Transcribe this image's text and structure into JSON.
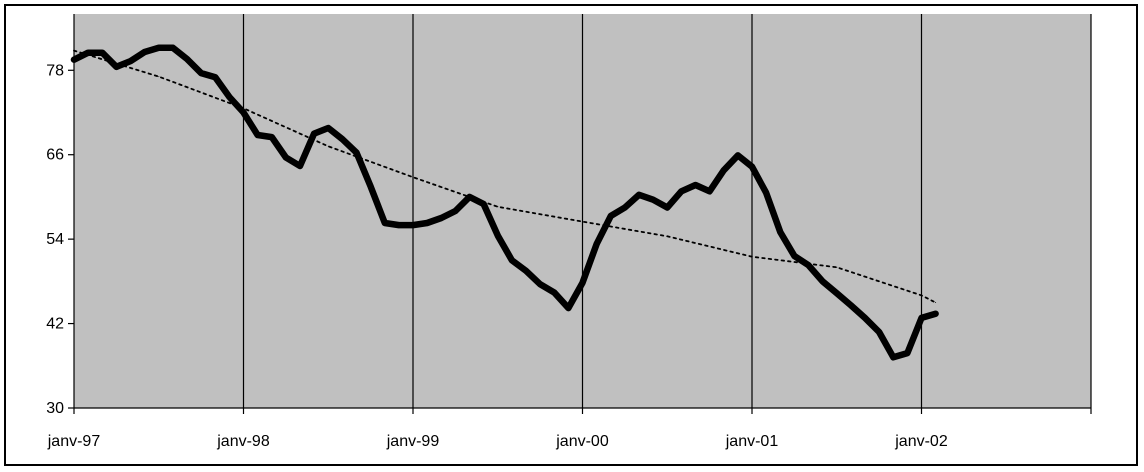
{
  "chart_data": {
    "type": "line",
    "title": "",
    "xlabel": "",
    "ylabel": "",
    "x_axis": {
      "range": [
        "1997-01",
        "2003-01"
      ],
      "tick_labels": [
        "janv-97",
        "janv-98",
        "janv-99",
        "janv-00",
        "janv-01",
        "janv-02"
      ],
      "tick_values": [
        "1997-01",
        "1998-01",
        "1999-01",
        "2000-01",
        "2001-01",
        "2002-01",
        "2003-01"
      ]
    },
    "y_axis": {
      "range": [
        30,
        86
      ],
      "tick_labels": [
        "30",
        "42",
        "54",
        "66",
        "78"
      ],
      "tick_values": [
        30,
        42,
        54,
        66,
        78
      ]
    },
    "grid": {
      "vertical": true,
      "horizontal": false
    },
    "legend": "none",
    "colors": {
      "plot_area": "#c0c0c0",
      "series": "#000000",
      "trend": "#000000",
      "frame": "#000000"
    },
    "series": [
      {
        "style": "solid-thick",
        "x": [
          "1997-01",
          "1997-02",
          "1997-03",
          "1997-04",
          "1997-05",
          "1997-06",
          "1997-07",
          "1997-08",
          "1997-09",
          "1997-10",
          "1997-11",
          "1997-12",
          "1998-01",
          "1998-02",
          "1998-03",
          "1998-04",
          "1998-05",
          "1998-06",
          "1998-07",
          "1998-08",
          "1998-09",
          "1998-10",
          "1998-11",
          "1998-12",
          "1999-01",
          "1999-02",
          "1999-03",
          "1999-04",
          "1999-05",
          "1999-06",
          "1999-07",
          "1999-08",
          "1999-09",
          "1999-10",
          "1999-11",
          "1999-12",
          "2000-01",
          "2000-02",
          "2000-03",
          "2000-04",
          "2000-05",
          "2000-06",
          "2000-07",
          "2000-08",
          "2000-09",
          "2000-10",
          "2000-11",
          "2000-12",
          "2001-01",
          "2001-02",
          "2001-03",
          "2001-04",
          "2001-05",
          "2001-06",
          "2001-07",
          "2001-08",
          "2001-09",
          "2001-10",
          "2001-11",
          "2001-12",
          "2002-01",
          "2002-02"
        ],
        "values": [
          79.5,
          80.5,
          80.5,
          78.5,
          79.3,
          80.6,
          81.2,
          81.2,
          79.6,
          77.6,
          77,
          74.2,
          72,
          68.8,
          68.5,
          65.6,
          64.4,
          69,
          69.8,
          68.2,
          66.3,
          61.5,
          56.3,
          56,
          56,
          56.3,
          57,
          58,
          60,
          59,
          54.5,
          51,
          49.5,
          47.6,
          46.4,
          44.2,
          47.8,
          53.3,
          57.3,
          58.5,
          60.3,
          59.6,
          58.5,
          60.8,
          61.7,
          60.8,
          63.8,
          65.9,
          64.3,
          60.6,
          55,
          51.6,
          50.3,
          48,
          46.3,
          44.6,
          42.8,
          40.8,
          37.2,
          37.8,
          42.8,
          43.4
        ]
      },
      {
        "style": "dotted-trend",
        "x": [
          "1997-01",
          "1997-07",
          "1998-01",
          "1998-07",
          "1999-01",
          "1999-07",
          "2000-01",
          "2000-07",
          "2001-01",
          "2001-07",
          "2002-01",
          "2002-02"
        ],
        "values": [
          80.8,
          77.1,
          72.6,
          67.2,
          62.8,
          58.6,
          56.5,
          54.4,
          51.5,
          50,
          46,
          45
        ]
      }
    ]
  }
}
